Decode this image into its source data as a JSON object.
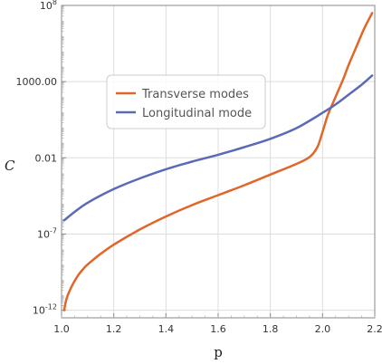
{
  "chart_data": {
    "type": "line",
    "title": "",
    "xlabel": "p",
    "ylabel": "C",
    "xlim": [
      1.0,
      2.2
    ],
    "ylim_log10": [
      -12.5,
      8
    ],
    "y_scale": "log",
    "grid": true,
    "legend_placement": "upper-center",
    "x_ticks": [
      {
        "value": 1.0,
        "label": "1.0"
      },
      {
        "value": 1.2,
        "label": "1.2"
      },
      {
        "value": 1.4,
        "label": "1.4"
      },
      {
        "value": 1.6,
        "label": "1.6"
      },
      {
        "value": 1.8,
        "label": "1.8"
      },
      {
        "value": 2.0,
        "label": "2.0"
      },
      {
        "value": 2.2,
        "label": "2.2"
      }
    ],
    "y_ticks": [
      {
        "log10": 8,
        "base": "10",
        "exp": "8",
        "label": ""
      },
      {
        "log10": 3,
        "base": "",
        "exp": "",
        "label": "1000.00"
      },
      {
        "log10": -2,
        "base": "",
        "exp": "",
        "label": "0.01"
      },
      {
        "log10": -7,
        "base": "10",
        "exp": "-7",
        "label": ""
      },
      {
        "log10": -12,
        "base": "10",
        "exp": "-12",
        "label": ""
      }
    ],
    "series": [
      {
        "name": "Transverse modes",
        "color": "#e0662a",
        "x": [
          1.01,
          1.02,
          1.04,
          1.06,
          1.08,
          1.1,
          1.15,
          1.2,
          1.3,
          1.4,
          1.5,
          1.6,
          1.7,
          1.8,
          1.9,
          1.95,
          1.98,
          2.0,
          2.02,
          2.05,
          2.08,
          2.1,
          2.13,
          2.16,
          2.19
        ],
        "log10_y": [
          -12.0,
          -11.2,
          -10.4,
          -9.8,
          -9.35,
          -9.0,
          -8.3,
          -7.7,
          -6.7,
          -5.85,
          -5.1,
          -4.45,
          -3.8,
          -3.1,
          -2.4,
          -1.95,
          -1.3,
          -0.3,
          0.8,
          2.0,
          3.2,
          4.1,
          5.3,
          6.5,
          7.5
        ]
      },
      {
        "name": "Longitudinal mode",
        "color": "#5b6ab8",
        "x": [
          1.01,
          1.05,
          1.1,
          1.2,
          1.3,
          1.4,
          1.5,
          1.6,
          1.7,
          1.8,
          1.9,
          2.0,
          2.05,
          2.1,
          2.15,
          2.19
        ],
        "log10_y": [
          -6.1,
          -5.55,
          -4.95,
          -4.05,
          -3.35,
          -2.75,
          -2.25,
          -1.8,
          -1.3,
          -0.75,
          -0.05,
          0.95,
          1.5,
          2.15,
          2.8,
          3.4
        ]
      }
    ]
  }
}
